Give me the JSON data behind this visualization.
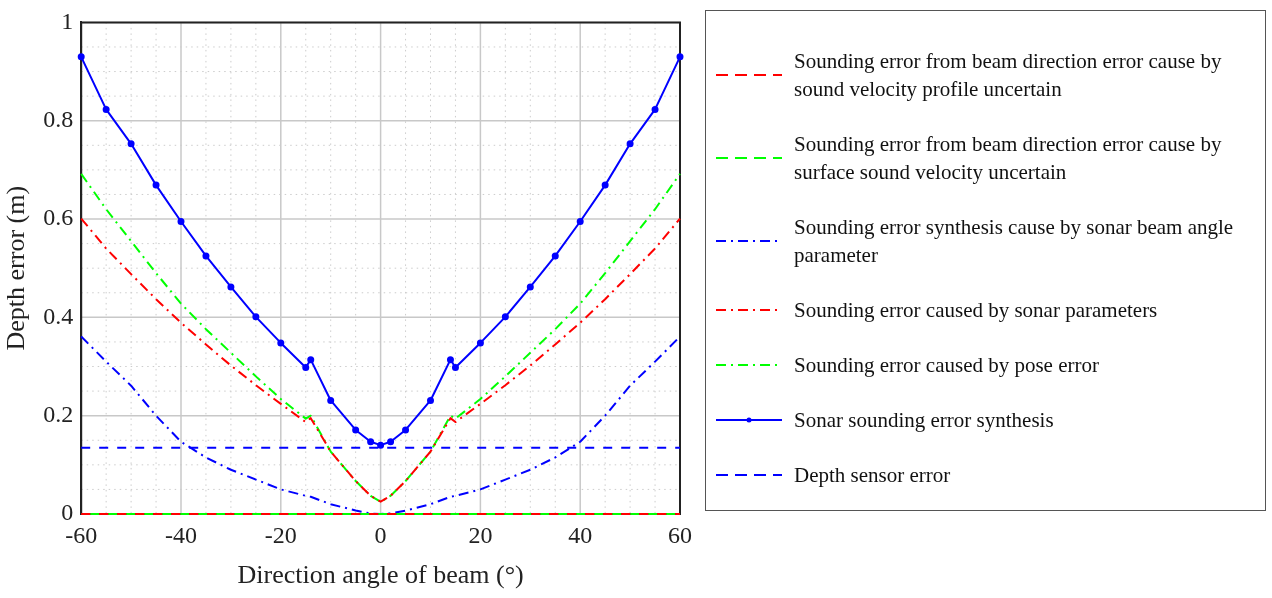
{
  "chart_data": {
    "type": "line",
    "xlabel": "Direction angle of beam (°)",
    "ylabel": "Depth error (m)",
    "xlim": [
      -60,
      60
    ],
    "xticks": [
      -60,
      {
        "value": -55,
        "label": null
      },
      {
        "value": -50,
        "label": null
      },
      {
        "value": -45,
        "label": null
      },
      -40,
      {
        "value": -35,
        "label": null
      },
      {
        "value": -30,
        "label": null
      },
      {
        "value": -25,
        "label": null
      },
      -20,
      {
        "value": -15,
        "label": null
      },
      {
        "value": -10,
        "label": null
      },
      {
        "value": -5,
        "label": null
      },
      0,
      {
        "value": 5,
        "label": null
      },
      {
        "value": 10,
        "label": null
      },
      {
        "value": 15,
        "label": null
      },
      20,
      {
        "value": 25,
        "label": null
      },
      {
        "value": 30,
        "label": null
      },
      {
        "value": 35,
        "label": null
      },
      40,
      {
        "value": 45,
        "label": null
      },
      {
        "value": 50,
        "label": null
      },
      {
        "value": 55,
        "label": null
      },
      60
    ],
    "ylim": [
      0,
      1
    ],
    "yticks": [
      0,
      {
        "value": 0.05,
        "label": null
      },
      {
        "value": 0.1,
        "label": null
      },
      {
        "value": 0.15,
        "label": null
      },
      0.2,
      {
        "value": 0.25,
        "label": null
      },
      {
        "value": 0.3,
        "label": null
      },
      {
        "value": 0.35,
        "label": null
      },
      0.4,
      {
        "value": 0.45,
        "label": null
      },
      {
        "value": 0.5,
        "label": null
      },
      {
        "value": 0.55,
        "label": null
      },
      0.6,
      {
        "value": 0.65,
        "label": null
      },
      {
        "value": 0.7,
        "label": null
      },
      {
        "value": 0.75,
        "label": null
      },
      0.8,
      {
        "value": 0.85,
        "label": null
      },
      {
        "value": 0.9,
        "label": null
      },
      {
        "value": 0.95,
        "label": null
      },
      1
    ],
    "grid": true,
    "legend": "right",
    "x": [
      -60,
      -55,
      -50,
      -45,
      -40,
      -35,
      -30,
      -25,
      -20,
      -15,
      -14,
      -10,
      -5,
      -2,
      0,
      2,
      5,
      10,
      14,
      15,
      20,
      25,
      30,
      35,
      40,
      45,
      50,
      55,
      60
    ],
    "series": [
      {
        "name": "Sounding error from beam direction error cause by sound velocity profile uncertain",
        "color": "#ff0000",
        "line_style": "dashed",
        "marker": "none",
        "values": [
          0,
          0,
          0,
          0,
          0,
          0,
          0,
          0,
          0,
          0,
          0,
          0,
          0,
          0,
          0,
          0,
          0,
          0,
          0,
          0,
          0,
          0,
          0,
          0,
          0,
          0,
          0,
          0,
          0
        ]
      },
      {
        "name": "Sounding error from beam direction error cause by surface sound velocity uncertain",
        "color": "#00ff00",
        "line_style": "dashed",
        "marker": "none",
        "values": [
          0,
          0,
          0,
          0,
          0,
          0,
          0,
          0,
          0,
          0,
          0,
          0,
          0,
          0,
          0,
          0,
          0,
          0,
          0,
          0,
          0,
          0,
          0,
          0,
          0,
          0,
          0,
          0,
          0
        ]
      },
      {
        "name": "Sounding error synthesis cause by sonar beam angle parameter",
        "color": "#0000ff",
        "line_style": "dashdot",
        "marker": "none",
        "values": [
          0.361,
          0.31,
          0.261,
          0.2,
          0.147,
          0.115,
          0.09,
          0.07,
          0.05,
          0.037,
          0.035,
          0.02,
          0.007,
          0.001,
          0,
          0.001,
          0.007,
          0.02,
          0.035,
          0.037,
          0.05,
          0.07,
          0.09,
          0.115,
          0.147,
          0.2,
          0.261,
          0.31,
          0.361
        ]
      },
      {
        "name": "Sounding error caused by sonar parameters",
        "color": "#ff0000",
        "line_style": "dashdot",
        "marker": "none",
        "values": [
          0.601,
          0.54,
          0.488,
          0.437,
          0.389,
          0.345,
          0.302,
          0.262,
          0.224,
          0.187,
          0.195,
          0.127,
          0.067,
          0.037,
          0.025,
          0.037,
          0.067,
          0.127,
          0.195,
          0.187,
          0.224,
          0.262,
          0.302,
          0.345,
          0.389,
          0.437,
          0.488,
          0.54,
          0.601
        ]
      },
      {
        "name": "Sounding error caused by pose error",
        "color": "#00ff00",
        "line_style": "dashdot",
        "marker": "none",
        "values": [
          0.692,
          0.62,
          0.555,
          0.49,
          0.428,
          0.376,
          0.328,
          0.28,
          0.234,
          0.194,
          0.2,
          0.127,
          0.067,
          0.037,
          0.025,
          0.037,
          0.067,
          0.127,
          0.2,
          0.194,
          0.234,
          0.28,
          0.328,
          0.376,
          0.428,
          0.49,
          0.555,
          0.62,
          0.692
        ]
      },
      {
        "name": "Sonar sounding error synthesis",
        "color": "#0000ff",
        "line_style": "solid",
        "marker": "circle",
        "values": [
          0.93,
          0.823,
          0.753,
          0.669,
          0.595,
          0.525,
          0.462,
          0.401,
          0.348,
          0.298,
          0.314,
          0.231,
          0.171,
          0.147,
          0.14,
          0.147,
          0.171,
          0.231,
          0.314,
          0.298,
          0.348,
          0.401,
          0.462,
          0.525,
          0.595,
          0.669,
          0.753,
          0.823,
          0.93
        ]
      },
      {
        "name": "Depth sensor error",
        "color": "#0000ff",
        "line_style": "dashed",
        "marker": "none",
        "values": [
          0.135,
          0.135,
          0.135,
          0.135,
          0.135,
          0.135,
          0.135,
          0.135,
          0.135,
          0.135,
          0.135,
          0.135,
          0.135,
          0.135,
          0.135,
          0.135,
          0.135,
          0.135,
          0.135,
          0.135,
          0.135,
          0.135,
          0.135,
          0.135,
          0.135,
          0.135,
          0.135,
          0.135,
          0.135
        ]
      }
    ]
  }
}
